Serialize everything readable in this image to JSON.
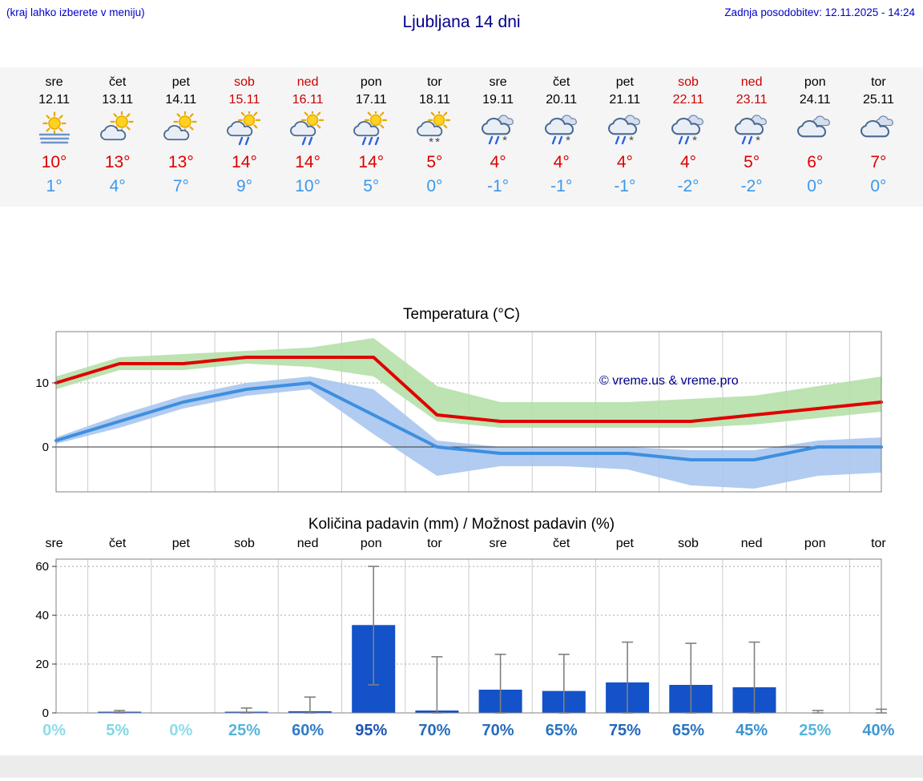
{
  "header": {
    "left_note": "(kraj lahko izberete v meniju)",
    "title": "Ljubljana 14 dni",
    "updated": "Zadnja posodobitev: 12.11.2025 - 14:24"
  },
  "forecast": {
    "days": [
      {
        "name": "sre",
        "date": "12.11",
        "weekend": false,
        "icon": "sun-fog",
        "tmax": "10°",
        "tmin": "1°"
      },
      {
        "name": "čet",
        "date": "13.11",
        "weekend": false,
        "icon": "sun-cloud",
        "tmax": "13°",
        "tmin": "4°"
      },
      {
        "name": "pet",
        "date": "14.11",
        "weekend": false,
        "icon": "sun-cloud",
        "tmax": "13°",
        "tmin": "7°"
      },
      {
        "name": "sob",
        "date": "15.11",
        "weekend": true,
        "icon": "sun-cloud-rain",
        "tmax": "14°",
        "tmin": "9°"
      },
      {
        "name": "ned",
        "date": "16.11",
        "weekend": true,
        "icon": "sun-cloud-rain",
        "tmax": "14°",
        "tmin": "10°"
      },
      {
        "name": "pon",
        "date": "17.11",
        "weekend": false,
        "icon": "sun-cloud-rain-heavy",
        "tmax": "14°",
        "tmin": "5°"
      },
      {
        "name": "tor",
        "date": "18.11",
        "weekend": false,
        "icon": "sun-cloud-snow",
        "tmax": "5°",
        "tmin": "0°"
      },
      {
        "name": "sre",
        "date": "19.11",
        "weekend": false,
        "icon": "cloud-sleet",
        "tmax": "4°",
        "tmin": "-1°"
      },
      {
        "name": "čet",
        "date": "20.11",
        "weekend": false,
        "icon": "cloud-sleet",
        "tmax": "4°",
        "tmin": "-1°"
      },
      {
        "name": "pet",
        "date": "21.11",
        "weekend": false,
        "icon": "cloud-sleet",
        "tmax": "4°",
        "tmin": "-1°"
      },
      {
        "name": "sob",
        "date": "22.11",
        "weekend": true,
        "icon": "cloud-sleet",
        "tmax": "4°",
        "tmin": "-2°"
      },
      {
        "name": "ned",
        "date": "23.11",
        "weekend": true,
        "icon": "cloud-sleet",
        "tmax": "5°",
        "tmin": "-2°"
      },
      {
        "name": "pon",
        "date": "24.11",
        "weekend": false,
        "icon": "cloudy",
        "tmax": "6°",
        "tmin": "0°"
      },
      {
        "name": "tor",
        "date": "25.11",
        "weekend": false,
        "icon": "cloudy",
        "tmax": "7°",
        "tmin": "0°"
      }
    ]
  },
  "chart_data": [
    {
      "type": "line",
      "title": "Temperatura (°C)",
      "x_labels": [
        "sre",
        "čet",
        "pet",
        "sob",
        "ned",
        "pon",
        "tor",
        "sre",
        "čet",
        "pet",
        "sob",
        "ned",
        "pon",
        "tor"
      ],
      "ylim": [
        -7,
        18
      ],
      "yticks": [
        0,
        10
      ],
      "series": [
        {
          "name": "max",
          "color": "#e00000",
          "values": [
            10,
            13,
            13,
            14,
            14,
            14,
            5,
            4,
            4,
            4,
            4,
            5,
            6,
            7
          ]
        },
        {
          "name": "min",
          "color": "#3d8fe0",
          "values": [
            1,
            4,
            7,
            9,
            10,
            5,
            0,
            -1,
            -1,
            -1,
            -2,
            -2,
            0,
            0
          ]
        }
      ],
      "bands": [
        {
          "name": "max-range",
          "color": "#b5e0a8",
          "upper": [
            11,
            14,
            14.5,
            15,
            15.5,
            17,
            9.5,
            7,
            7,
            7,
            7.5,
            8,
            9.5,
            11
          ],
          "lower": [
            9,
            12,
            12,
            13,
            12.5,
            11,
            4,
            3,
            3,
            3,
            3,
            3.5,
            4.5,
            5.5
          ]
        },
        {
          "name": "min-range",
          "color": "#a9c6ee",
          "upper": [
            1.5,
            5,
            8,
            10,
            11,
            9,
            1,
            0,
            0,
            0,
            -0.5,
            -0.5,
            1,
            1.5
          ],
          "lower": [
            0.5,
            3,
            6,
            8,
            9,
            2,
            -4.5,
            -3,
            -3,
            -3.5,
            -6,
            -6.5,
            -4.5,
            -4
          ]
        }
      ],
      "watermark": "© vreme.us & vreme.pro"
    },
    {
      "type": "bar",
      "title": "Količina padavin (mm) / Možnost padavin (%)",
      "categories": [
        "sre",
        "čet",
        "pet",
        "sob",
        "ned",
        "pon",
        "tor",
        "sre",
        "čet",
        "pet",
        "sob",
        "ned",
        "pon",
        "tor"
      ],
      "values": [
        0,
        0.3,
        0,
        0.5,
        0.7,
        36,
        1,
        9.5,
        9,
        12.5,
        11.5,
        10.5,
        0,
        0
      ],
      "whisker_low": [
        0,
        0,
        0,
        0,
        0,
        11.5,
        0,
        0,
        0,
        0,
        0,
        0,
        0,
        0
      ],
      "whisker_high": [
        0,
        1,
        0,
        2,
        6.5,
        60,
        23,
        24,
        24,
        29,
        28.5,
        29,
        1,
        1.5
      ],
      "ylim": [
        0,
        63
      ],
      "yticks": [
        0,
        20,
        40,
        60
      ],
      "bar_color": "#1352c8",
      "whisker_color": "#808080",
      "probabilities": [
        {
          "label": "0%",
          "color": "#8edce8"
        },
        {
          "label": "5%",
          "color": "#85d6e5"
        },
        {
          "label": "0%",
          "color": "#8edce8"
        },
        {
          "label": "25%",
          "color": "#58b4da"
        },
        {
          "label": "60%",
          "color": "#2e7cc6"
        },
        {
          "label": "95%",
          "color": "#1d55b2"
        },
        {
          "label": "70%",
          "color": "#276cbe"
        },
        {
          "label": "70%",
          "color": "#276cbe"
        },
        {
          "label": "65%",
          "color": "#2a74c2"
        },
        {
          "label": "75%",
          "color": "#2466bb"
        },
        {
          "label": "65%",
          "color": "#2a74c2"
        },
        {
          "label": "45%",
          "color": "#3a92cf"
        },
        {
          "label": "25%",
          "color": "#58b4da"
        },
        {
          "label": "40%",
          "color": "#3f98d2"
        }
      ]
    }
  ]
}
